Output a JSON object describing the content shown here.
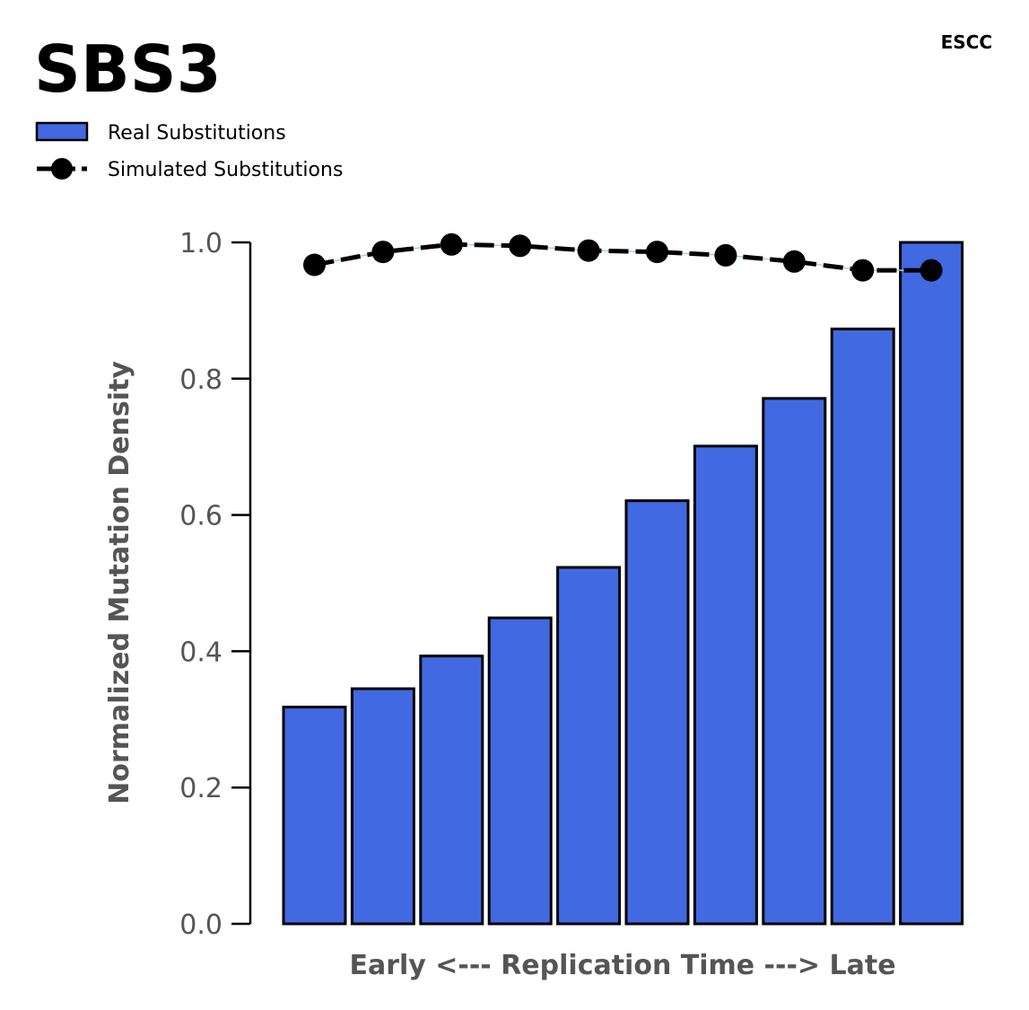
{
  "chart_data": {
    "type": "bar",
    "title": "SBS3",
    "corner_label": "ESCC",
    "xlabel": "Early <--- Replication Time ---> Late",
    "ylabel": "Normalized Mutation Density",
    "ylim": [
      0,
      1.0
    ],
    "yticks": [
      "0.0",
      "0.2",
      "0.4",
      "0.6",
      "0.8",
      "1.0"
    ],
    "yticks_values": [
      0,
      0.2,
      0.4,
      0.6,
      0.8,
      1.0
    ],
    "grid": false,
    "legend_position": "top-left",
    "x": [
      1,
      2,
      3,
      4,
      5,
      6,
      7,
      8,
      9,
      10
    ],
    "series": [
      {
        "name": "Real Substitutions",
        "type": "bar",
        "color": "#4169e1",
        "values": [
          0.318,
          0.345,
          0.393,
          0.449,
          0.523,
          0.621,
          0.701,
          0.771,
          0.873,
          1.0
        ]
      },
      {
        "name": "Simulated Substitutions",
        "type": "line",
        "color": "#000000",
        "values": [
          0.967,
          0.986,
          0.997,
          0.995,
          0.988,
          0.986,
          0.981,
          0.972,
          0.959,
          0.959
        ]
      }
    ]
  }
}
